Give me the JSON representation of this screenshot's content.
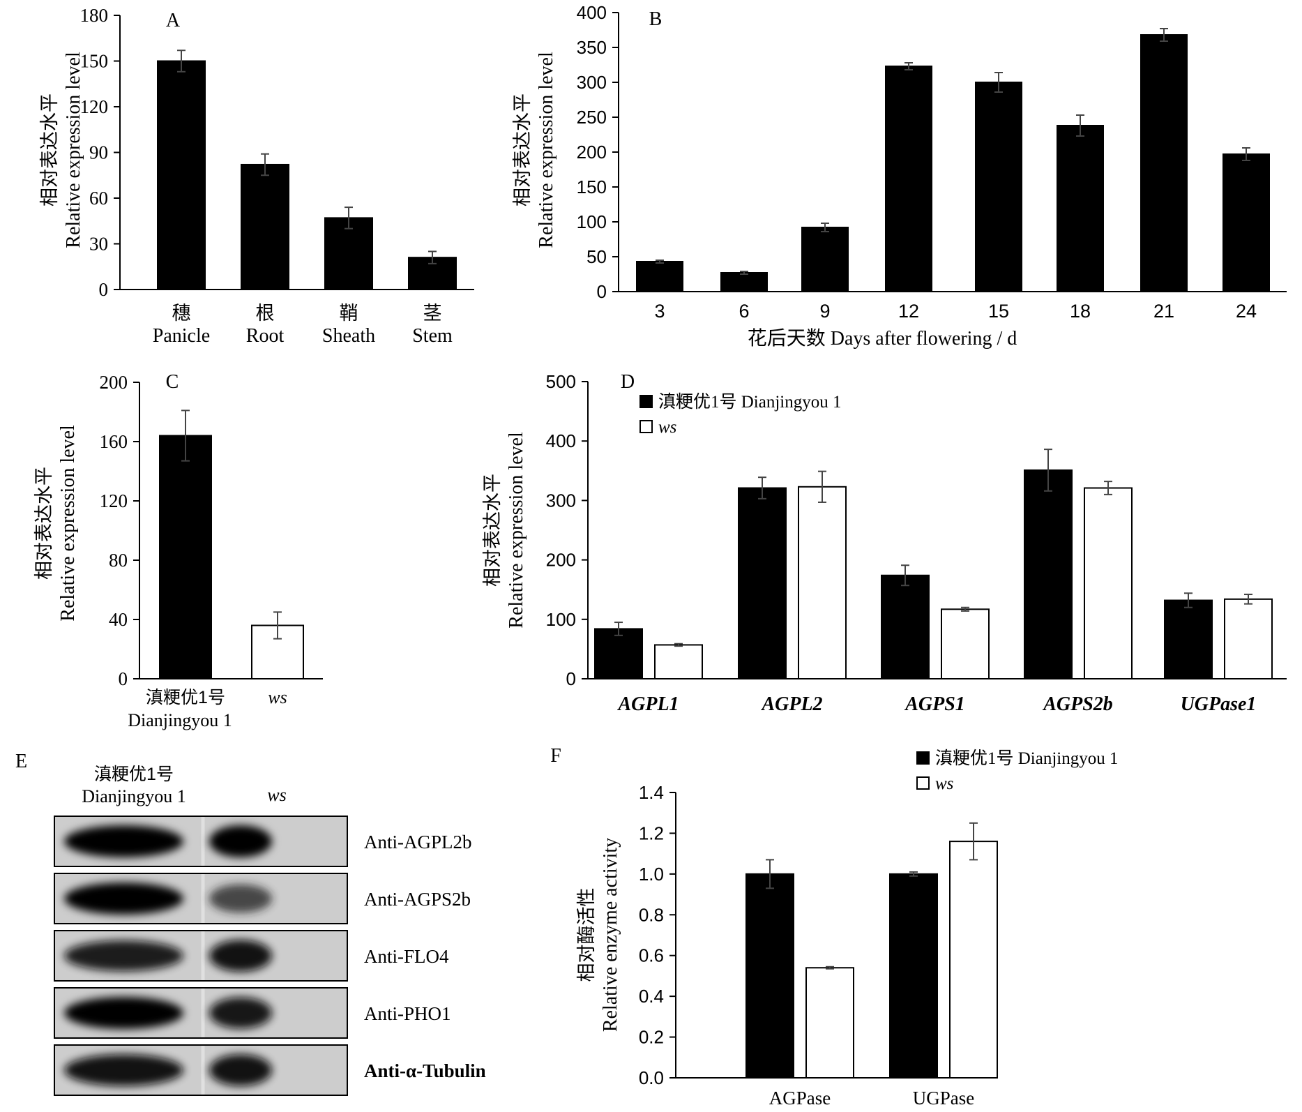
{
  "chart_data": [
    {
      "panel": "A",
      "type": "bar",
      "categories": [
        {
          "cn": "穗",
          "en": "Panicle"
        },
        {
          "cn": "根",
          "en": "Root"
        },
        {
          "cn": "鞘",
          "en": "Sheath"
        },
        {
          "cn": "茎",
          "en": "Stem"
        }
      ],
      "series": [
        {
          "values": [
            150,
            82,
            47,
            21
          ],
          "errors": [
            7,
            7,
            7,
            4
          ],
          "fill": "#000000"
        }
      ],
      "ylabel_cn": "相对表达水平",
      "ylabel_en": "Relative expression level",
      "xlabel": "",
      "ylim": [
        0,
        180
      ],
      "yticks": [
        0,
        30,
        60,
        90,
        120,
        150,
        180
      ],
      "ytick_labels": [
        "0",
        "30",
        "60",
        "90",
        "120",
        "150",
        "180"
      ]
    },
    {
      "panel": "B",
      "type": "bar",
      "categories": [
        "3",
        "6",
        "9",
        "12",
        "15",
        "18",
        "21",
        "24"
      ],
      "series": [
        {
          "values": [
            43,
            27,
            92,
            323,
            300,
            238,
            368,
            197
          ],
          "errors": [
            2,
            2,
            6,
            5,
            14,
            15,
            9,
            9
          ],
          "fill": "#000000"
        }
      ],
      "ylabel_cn": "相对表达水平",
      "ylabel_en": "Relative expression level",
      "xlabel": "花后天数 Days after flowering / d",
      "ylim": [
        0,
        400
      ],
      "yticks": [
        0,
        50,
        100,
        150,
        200,
        250,
        300,
        350,
        400
      ],
      "ytick_labels": [
        "0",
        "50",
        "100",
        "150",
        "200",
        "250",
        "300",
        "350",
        "400"
      ]
    },
    {
      "panel": "C",
      "type": "bar",
      "categories": [
        {
          "cn": "滇粳优1号",
          "en": "Dianjingyou 1"
        },
        {
          "cn": "",
          "en": "ws"
        }
      ],
      "series": [
        {
          "values": [
            164,
            36
          ],
          "errors": [
            17,
            9
          ],
          "fills": [
            "#000000",
            "#ffffff"
          ]
        }
      ],
      "ylabel_cn": "相对表达水平",
      "ylabel_en": "Relative expression level",
      "xlabel": "",
      "ylim": [
        0,
        200
      ],
      "yticks": [
        0,
        40,
        80,
        120,
        160,
        200
      ],
      "ytick_labels": [
        "0",
        "40",
        "80",
        "120",
        "160",
        "200"
      ]
    },
    {
      "panel": "D",
      "type": "bar",
      "categories": [
        "AGPL1",
        "AGPL2",
        "AGPS1",
        "AGPS2b",
        "UGPase1"
      ],
      "series": [
        {
          "name": "滇粳优1号 Dianjingyou 1",
          "values": [
            84,
            321,
            174,
            351,
            132
          ],
          "errors": [
            11,
            18,
            17,
            35,
            12
          ],
          "fill": "#000000"
        },
        {
          "name": "ws",
          "values": [
            57,
            323,
            117,
            321,
            134
          ],
          "errors": [
            2,
            26,
            3,
            11,
            8
          ],
          "fill": "#ffffff"
        }
      ],
      "ylabel_cn": "相对表达水平",
      "ylabel_en": "Relative expression level",
      "xlabel": "",
      "ylim": [
        0,
        500
      ],
      "yticks": [
        0,
        100,
        200,
        300,
        400,
        500
      ],
      "ytick_labels": [
        "0",
        "100",
        "200",
        "300",
        "400",
        "500"
      ],
      "legend": "top-left"
    },
    {
      "panel": "F",
      "type": "bar",
      "categories": [
        "AGPase",
        "UGPase"
      ],
      "series": [
        {
          "name": "滇粳优1号 Dianjingyou 1",
          "values": [
            1.0,
            1.0
          ],
          "errors": [
            0.07,
            0.01
          ],
          "fill": "#000000"
        },
        {
          "name": "ws",
          "values": [
            0.54,
            1.16
          ],
          "errors": [
            0.005,
            0.09
          ],
          "fill": "#ffffff"
        }
      ],
      "ylabel_cn": "相对酶活性",
      "ylabel_en": "Relative enzyme activity",
      "xlabel": "",
      "ylim": [
        0,
        1.4
      ],
      "yticks": [
        0,
        0.2,
        0.4,
        0.6,
        0.8,
        1.0,
        1.2,
        1.4
      ],
      "ytick_labels": [
        "0.0",
        "0.2",
        "0.4",
        "0.6",
        "0.8",
        "1.0",
        "1.2",
        "1.4"
      ],
      "legend": "top"
    }
  ],
  "western_blot": {
    "panel": "E",
    "columns": [
      {
        "cn": "滇粳优1号",
        "en": "Dianjingyou 1"
      },
      {
        "cn": "",
        "en": "ws"
      }
    ],
    "rows": [
      {
        "label": "Anti-AGPL2b",
        "bold": false,
        "intensity": [
          1.0,
          1.0
        ]
      },
      {
        "label": "Anti-AGPS2b",
        "bold": false,
        "intensity": [
          1.0,
          0.55
        ]
      },
      {
        "label": "Anti-FLO4",
        "bold": false,
        "intensity": [
          0.85,
          0.95
        ]
      },
      {
        "label": "Anti-PHO1",
        "bold": false,
        "intensity": [
          1.0,
          0.9
        ]
      },
      {
        "label": "Anti-α-Tubulin",
        "bold": true,
        "intensity": [
          0.95,
          0.95
        ]
      }
    ]
  }
}
